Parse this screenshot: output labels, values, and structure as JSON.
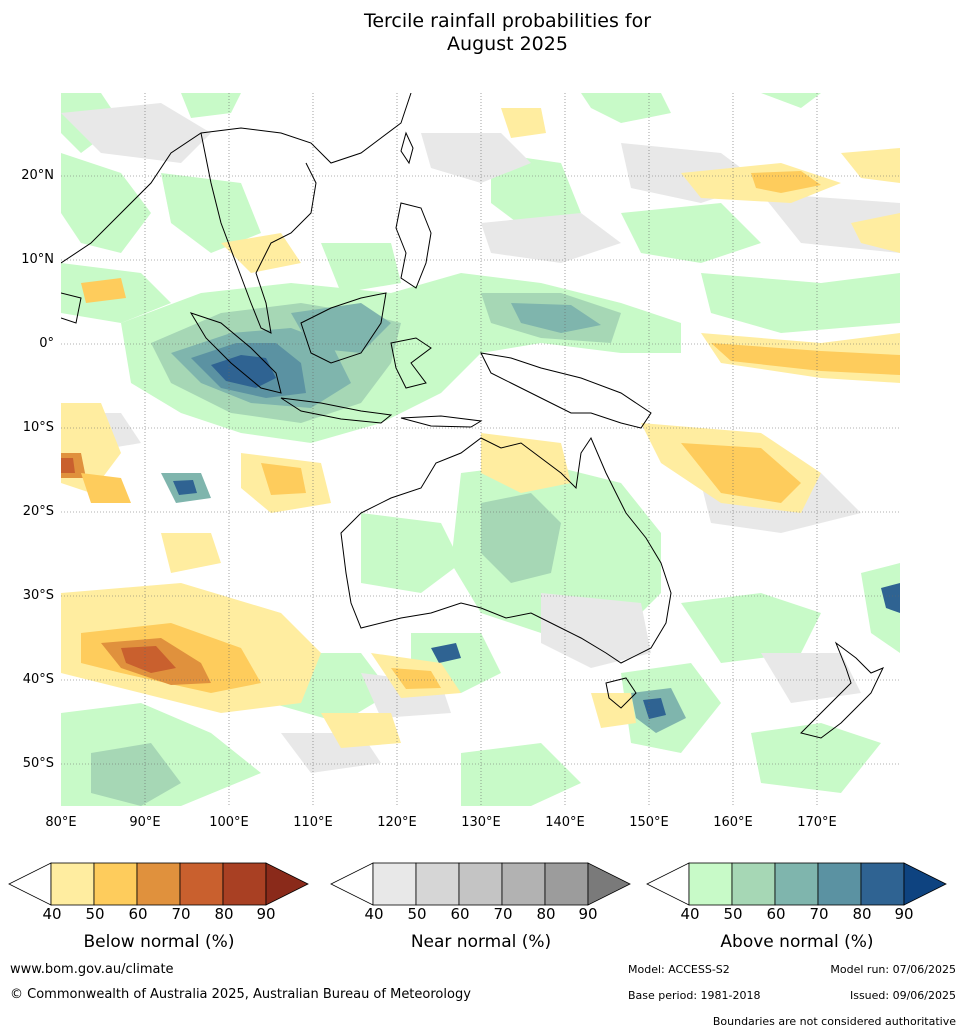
{
  "title": {
    "line1": "Tercile rainfall probabilities for",
    "line2": "August 2025"
  },
  "map": {
    "latitude_labels": [
      "20°N",
      "10°N",
      "0°",
      "10°S",
      "20°S",
      "30°S",
      "40°S",
      "50°S"
    ],
    "longitude_labels": [
      "80°E",
      "90°E",
      "100°E",
      "110°E",
      "120°E",
      "130°E",
      "140°E",
      "150°E",
      "160°E",
      "170°E"
    ],
    "extent": {
      "lon_min": 80,
      "lon_max": 180,
      "lat_min": -55,
      "lat_max": 30
    }
  },
  "colorbars": [
    {
      "title": "Below normal (%)",
      "ticks": [
        "40",
        "50",
        "60",
        "70",
        "80",
        "90"
      ],
      "colors": [
        "#ffffff",
        "#ffeda0",
        "#fecc5c",
        "#e0913d",
        "#c9602e",
        "#a94023",
        "#8a2a1a"
      ]
    },
    {
      "title": "Near normal (%)",
      "ticks": [
        "40",
        "50",
        "60",
        "70",
        "80",
        "90"
      ],
      "colors": [
        "#ffffff",
        "#e8e8e8",
        "#d6d6d6",
        "#c4c4c4",
        "#b2b2b2",
        "#9c9c9c",
        "#7a7a7a"
      ]
    },
    {
      "title": "Above normal (%)",
      "ticks": [
        "40",
        "50",
        "60",
        "70",
        "80",
        "90"
      ],
      "colors": [
        "#ffffff",
        "#c8fac8",
        "#a6d7b5",
        "#7fb5ad",
        "#5b92a2",
        "#2f6392",
        "#0e4380"
      ]
    }
  ],
  "footer": {
    "website": "www.bom.gov.au/climate",
    "copyright": "© Commonwealth of Australia 2025, Australian Bureau of Meteorology",
    "model": "Model: ACCESS-S2",
    "model_run": "Model run: 07/06/2025",
    "base_period": "Base period: 1981-2018",
    "issued": "Issued: 09/06/2025",
    "disclaimer": "Boundaries are not considered authoritative"
  }
}
